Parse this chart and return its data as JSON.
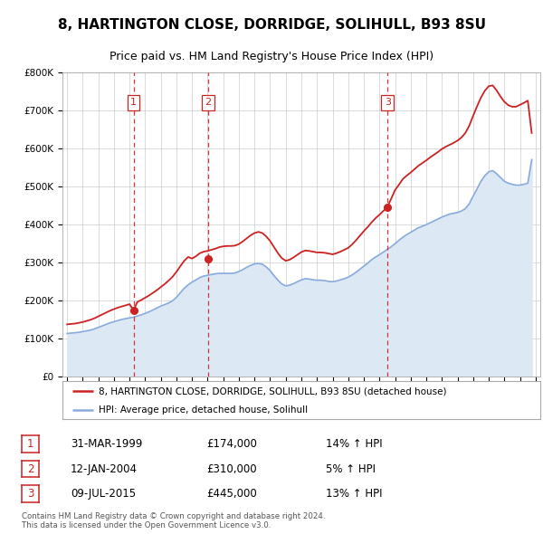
{
  "title": "8, HARTINGTON CLOSE, DORRIDGE, SOLIHULL, B93 8SU",
  "subtitle": "Price paid vs. HM Land Registry's House Price Index (HPI)",
  "ylim": [
    0,
    800000
  ],
  "yticks": [
    0,
    100000,
    200000,
    300000,
    400000,
    500000,
    600000,
    700000,
    800000
  ],
  "ytick_labels": [
    "£0",
    "£100K",
    "£200K",
    "£300K",
    "£400K",
    "£500K",
    "£600K",
    "£700K",
    "£800K"
  ],
  "xlim_start": 1994.7,
  "xlim_end": 2025.3,
  "xticks": [
    1995,
    1996,
    1997,
    1998,
    1999,
    2000,
    2001,
    2002,
    2003,
    2004,
    2005,
    2006,
    2007,
    2008,
    2009,
    2010,
    2011,
    2012,
    2013,
    2014,
    2015,
    2016,
    2017,
    2018,
    2019,
    2020,
    2021,
    2022,
    2023,
    2024,
    2025
  ],
  "background_color": "#ffffff",
  "grid_color": "#cccccc",
  "sale_color": "#cc2222",
  "hpi_color": "#88aadd",
  "hpi_fill_color": "#dde8f5",
  "vline_color": "#cc2222",
  "title_fontsize": 11,
  "subtitle_fontsize": 9,
  "tick_fontsize": 7.5,
  "purchases": [
    {
      "num": 1,
      "x": 1999.25,
      "price": 174000,
      "label": "1",
      "date": "31-MAR-1999",
      "amount": "£174,000",
      "pct": "14% ↑ HPI"
    },
    {
      "num": 2,
      "x": 2004.04,
      "price": 310000,
      "label": "2",
      "date": "12-JAN-2004",
      "amount": "£310,000",
      "pct": "5% ↑ HPI"
    },
    {
      "num": 3,
      "x": 2015.52,
      "price": 445000,
      "label": "3",
      "date": "09-JUL-2015",
      "amount": "£445,000",
      "pct": "13% ↑ HPI"
    }
  ],
  "legend_label_red": "8, HARTINGTON CLOSE, DORRIDGE, SOLIHULL, B93 8SU (detached house)",
  "legend_label_blue": "HPI: Average price, detached house, Solihull",
  "footer": "Contains HM Land Registry data © Crown copyright and database right 2024.\nThis data is licensed under the Open Government Licence v3.0.",
  "hpi_x": [
    1995.0,
    1995.25,
    1995.5,
    1995.75,
    1996.0,
    1996.25,
    1996.5,
    1996.75,
    1997.0,
    1997.25,
    1997.5,
    1997.75,
    1998.0,
    1998.25,
    1998.5,
    1998.75,
    1999.0,
    1999.25,
    1999.5,
    1999.75,
    2000.0,
    2000.25,
    2000.5,
    2000.75,
    2001.0,
    2001.25,
    2001.5,
    2001.75,
    2002.0,
    2002.25,
    2002.5,
    2002.75,
    2003.0,
    2003.25,
    2003.5,
    2003.75,
    2004.0,
    2004.25,
    2004.5,
    2004.75,
    2005.0,
    2005.25,
    2005.5,
    2005.75,
    2006.0,
    2006.25,
    2006.5,
    2006.75,
    2007.0,
    2007.25,
    2007.5,
    2007.75,
    2008.0,
    2008.25,
    2008.5,
    2008.75,
    2009.0,
    2009.25,
    2009.5,
    2009.75,
    2010.0,
    2010.25,
    2010.5,
    2010.75,
    2011.0,
    2011.25,
    2011.5,
    2011.75,
    2012.0,
    2012.25,
    2012.5,
    2012.75,
    2013.0,
    2013.25,
    2013.5,
    2013.75,
    2014.0,
    2014.25,
    2014.5,
    2014.75,
    2015.0,
    2015.25,
    2015.5,
    2015.75,
    2016.0,
    2016.25,
    2016.5,
    2016.75,
    2017.0,
    2017.25,
    2017.5,
    2017.75,
    2018.0,
    2018.25,
    2018.5,
    2018.75,
    2019.0,
    2019.25,
    2019.5,
    2019.75,
    2020.0,
    2020.25,
    2020.5,
    2020.75,
    2021.0,
    2021.25,
    2021.5,
    2021.75,
    2022.0,
    2022.25,
    2022.5,
    2022.75,
    2023.0,
    2023.25,
    2023.5,
    2023.75,
    2024.0,
    2024.25,
    2024.5,
    2024.75
  ],
  "hpi_y": [
    113000,
    114000,
    115000,
    116000,
    118000,
    120000,
    122000,
    125000,
    129000,
    133000,
    137000,
    141000,
    144000,
    147000,
    150000,
    152000,
    154000,
    156000,
    159000,
    162000,
    166000,
    170000,
    175000,
    180000,
    185000,
    189000,
    193000,
    199000,
    208000,
    220000,
    232000,
    241000,
    248000,
    254000,
    260000,
    264000,
    266000,
    268000,
    270000,
    271000,
    271000,
    271000,
    271000,
    272000,
    276000,
    281000,
    287000,
    292000,
    296000,
    297000,
    295000,
    288000,
    278000,
    265000,
    253000,
    243000,
    238000,
    240000,
    244000,
    249000,
    254000,
    257000,
    256000,
    254000,
    253000,
    253000,
    252000,
    250000,
    249000,
    251000,
    254000,
    257000,
    261000,
    267000,
    274000,
    282000,
    290000,
    298000,
    307000,
    314000,
    320000,
    327000,
    334000,
    341000,
    349000,
    358000,
    366000,
    373000,
    379000,
    385000,
    391000,
    395000,
    399000,
    404000,
    409000,
    414000,
    419000,
    423000,
    427000,
    429000,
    431000,
    435000,
    441000,
    454000,
    474000,
    493000,
    513000,
    528000,
    538000,
    541000,
    533000,
    523000,
    513000,
    508000,
    505000,
    503000,
    503000,
    505000,
    508000,
    570000
  ],
  "sale_x": [
    1995.0,
    1995.25,
    1995.5,
    1995.75,
    1996.0,
    1996.25,
    1996.5,
    1996.75,
    1997.0,
    1997.25,
    1997.5,
    1997.75,
    1998.0,
    1998.25,
    1998.5,
    1998.75,
    1999.0,
    1999.25,
    1999.5,
    1999.75,
    2000.0,
    2000.25,
    2000.5,
    2000.75,
    2001.0,
    2001.25,
    2001.5,
    2001.75,
    2002.0,
    2002.25,
    2002.5,
    2002.75,
    2003.0,
    2003.25,
    2003.5,
    2003.75,
    2004.0,
    2004.25,
    2004.5,
    2004.75,
    2005.0,
    2005.25,
    2005.5,
    2005.75,
    2006.0,
    2006.25,
    2006.5,
    2006.75,
    2007.0,
    2007.25,
    2007.5,
    2007.75,
    2008.0,
    2008.25,
    2008.5,
    2008.75,
    2009.0,
    2009.25,
    2009.5,
    2009.75,
    2010.0,
    2010.25,
    2010.5,
    2010.75,
    2011.0,
    2011.25,
    2011.5,
    2011.75,
    2012.0,
    2012.25,
    2012.5,
    2012.75,
    2013.0,
    2013.25,
    2013.5,
    2013.75,
    2014.0,
    2014.25,
    2014.5,
    2014.75,
    2015.0,
    2015.25,
    2015.5,
    2015.75,
    2016.0,
    2016.25,
    2016.5,
    2016.75,
    2017.0,
    2017.25,
    2017.5,
    2017.75,
    2018.0,
    2018.25,
    2018.5,
    2018.75,
    2019.0,
    2019.25,
    2019.5,
    2019.75,
    2020.0,
    2020.25,
    2020.5,
    2020.75,
    2021.0,
    2021.25,
    2021.5,
    2021.75,
    2022.0,
    2022.25,
    2022.5,
    2022.75,
    2023.0,
    2023.25,
    2023.5,
    2023.75,
    2024.0,
    2024.25,
    2024.5,
    2024.75
  ],
  "sale_y": [
    137000,
    138000,
    139000,
    141000,
    143000,
    146000,
    149000,
    153000,
    158000,
    163000,
    168000,
    173000,
    177000,
    181000,
    184000,
    187000,
    190000,
    174000,
    196000,
    201000,
    207000,
    213000,
    220000,
    227000,
    235000,
    243000,
    252000,
    262000,
    275000,
    290000,
    304000,
    314000,
    310000,
    316000,
    324000,
    328000,
    330000,
    333000,
    336000,
    340000,
    342000,
    343000,
    343000,
    344000,
    348000,
    355000,
    363000,
    371000,
    377000,
    380000,
    377000,
    368000,
    356000,
    340000,
    324000,
    311000,
    304000,
    307000,
    313000,
    320000,
    327000,
    331000,
    330000,
    328000,
    326000,
    326000,
    325000,
    323000,
    321000,
    324000,
    328000,
    333000,
    338000,
    347000,
    358000,
    370000,
    382000,
    393000,
    405000,
    416000,
    425000,
    435000,
    445000,
    467000,
    490000,
    504000,
    519000,
    528000,
    536000,
    545000,
    554000,
    561000,
    568000,
    576000,
    583000,
    590000,
    598000,
    604000,
    609000,
    614000,
    620000,
    628000,
    640000,
    659000,
    685000,
    710000,
    733000,
    751000,
    763000,
    765000,
    752000,
    736000,
    722000,
    713000,
    709000,
    709000,
    714000,
    719000,
    725000,
    640000
  ]
}
